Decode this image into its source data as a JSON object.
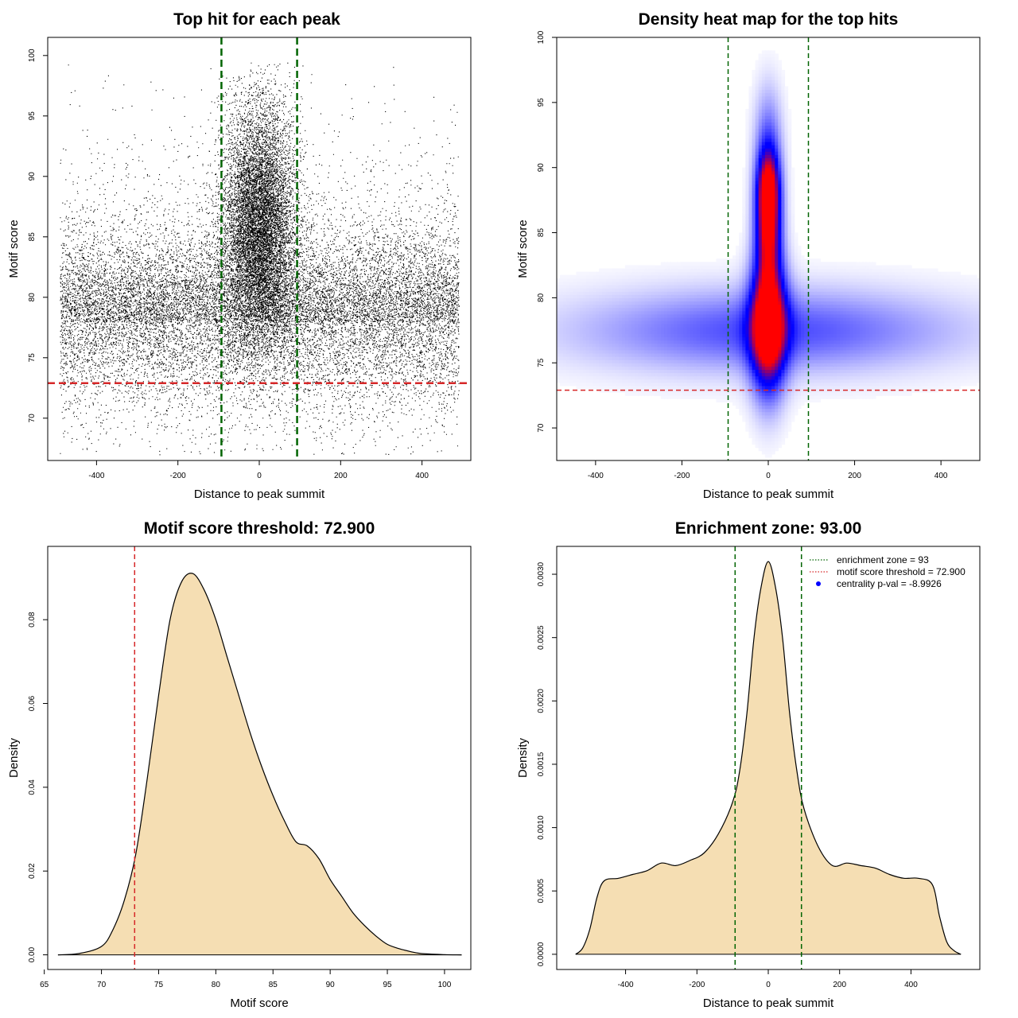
{
  "colors": {
    "scatter_points": "#000000",
    "threshold_line": "#d62728",
    "enrichment_line": "#006400",
    "fill": "#f5deb3",
    "heat_low": "#0000ff",
    "heat_high": "#ff0000"
  },
  "chart_data": [
    {
      "type": "scatter",
      "title": "Top hit for each peak",
      "xlabel": "Distance to peak summit",
      "ylabel": "Motif score",
      "xlim": [
        -520,
        520
      ],
      "ylim": [
        66.5,
        101.5
      ],
      "xticks": [
        -400,
        -200,
        0,
        200,
        400
      ],
      "xtick_labels": [
        "-400",
        "-200",
        "0",
        "200",
        "400"
      ],
      "yticks": [
        70,
        75,
        80,
        85,
        90,
        95,
        100
      ],
      "ytick_labels": [
        "70",
        "75",
        "80",
        "85",
        "90",
        "95",
        "100"
      ],
      "vlines": [
        -93,
        93
      ],
      "hlines": [
        72.9
      ],
      "background_x_range": [
        -490,
        490
      ],
      "background_y_center": 78,
      "background_y_spread": 3.5,
      "central_y_center": 86,
      "central_y_spread": 5,
      "central_x_spread": 45,
      "n_points": 26000,
      "grid": false
    },
    {
      "type": "heatmap",
      "title": "Density heat map for the top hits",
      "xlabel": "Distance to peak summit",
      "ylabel": "Motif score",
      "xlim": [
        -490,
        490
      ],
      "ylim": [
        67.5,
        100
      ],
      "xticks": [
        -400,
        -200,
        0,
        200,
        400
      ],
      "xtick_labels": [
        "-400",
        "-200",
        "0",
        "200",
        "400"
      ],
      "yticks": [
        70,
        75,
        80,
        85,
        90,
        95,
        100
      ],
      "ytick_labels": [
        "70",
        "75",
        "80",
        "85",
        "90",
        "95",
        "100"
      ],
      "vlines": [
        -93,
        93
      ],
      "hlines": [
        72.9
      ],
      "density_peaks": [
        {
          "x": 0,
          "y": 78,
          "sx": 28,
          "sy": 3.5,
          "w": 1.0
        },
        {
          "x": 0,
          "y": 85.5,
          "sx": 20,
          "sy": 3.0,
          "w": 0.75
        },
        {
          "x": 0,
          "y": 88.5,
          "sx": 18,
          "sy": 2.0,
          "w": 0.55
        },
        {
          "x": 0,
          "y": 92,
          "sx": 22,
          "sy": 3.0,
          "w": 0.25
        },
        {
          "x": 0,
          "y": 77.5,
          "sx": 300,
          "sy": 2.2,
          "w": 0.32
        }
      ],
      "grid": false
    },
    {
      "type": "area",
      "title": "Motif score threshold: 72.900",
      "xlabel": "Motif score",
      "ylabel": "Density",
      "xlim": [
        65.3,
        102.3
      ],
      "ylim": [
        -0.0035,
        0.0975
      ],
      "xticks": [
        65,
        70,
        75,
        80,
        85,
        90,
        95,
        100
      ],
      "xtick_labels": [
        "65",
        "70",
        "75",
        "80",
        "85",
        "90",
        "95",
        "100"
      ],
      "yticks": [
        0,
        0.02,
        0.04,
        0.06,
        0.08
      ],
      "ytick_labels": [
        "0.00",
        "0.02",
        "0.04",
        "0.06",
        "0.08"
      ],
      "vlines": [
        72.9
      ],
      "x": [
        66.2,
        68,
        70,
        71,
        72,
        73,
        74,
        75,
        76,
        77,
        78,
        79,
        80,
        81,
        82,
        83,
        84,
        85,
        86,
        87,
        88,
        89,
        90,
        91,
        92,
        93,
        94,
        95,
        96,
        97,
        98,
        100,
        101.5
      ],
      "y": [
        0,
        0.0003,
        0.002,
        0.006,
        0.013,
        0.024,
        0.042,
        0.062,
        0.08,
        0.089,
        0.091,
        0.087,
        0.08,
        0.071,
        0.062,
        0.053,
        0.045,
        0.038,
        0.032,
        0.027,
        0.026,
        0.023,
        0.018,
        0.014,
        0.01,
        0.007,
        0.0045,
        0.0025,
        0.0015,
        0.0008,
        0.0003,
        5e-05,
        0
      ],
      "grid": false
    },
    {
      "type": "area",
      "title": "Enrichment zone: 93.00",
      "xlabel": "Distance to peak summit",
      "ylabel": "Density",
      "xlim": [
        -593,
        593
      ],
      "ylim": [
        -0.00012,
        0.00322
      ],
      "xticks": [
        -400,
        -200,
        0,
        200,
        400
      ],
      "xtick_labels": [
        "-400",
        "-200",
        "0",
        "200",
        "400"
      ],
      "yticks": [
        0,
        0.0005,
        0.001,
        0.0015,
        0.002,
        0.0025,
        0.003
      ],
      "ytick_labels": [
        "0.0000",
        "0.0005",
        "0.0010",
        "0.0015",
        "0.0020",
        "0.0025",
        "0.0030"
      ],
      "vlines": [
        -93,
        93
      ],
      "x": [
        -540,
        -520,
        -500,
        -480,
        -460,
        -420,
        -380,
        -340,
        -300,
        -260,
        -220,
        -180,
        -140,
        -100,
        -80,
        -60,
        -40,
        -20,
        0,
        20,
        40,
        60,
        80,
        100,
        140,
        180,
        220,
        260,
        300,
        340,
        380,
        420,
        460,
        480,
        500,
        520,
        540
      ],
      "y": [
        0,
        5e-05,
        0.0002,
        0.00045,
        0.00058,
        0.0006,
        0.00063,
        0.00066,
        0.00072,
        0.0007,
        0.00074,
        0.0008,
        0.00095,
        0.0012,
        0.00145,
        0.0019,
        0.0025,
        0.0029,
        0.0031,
        0.0029,
        0.0025,
        0.0019,
        0.00145,
        0.00115,
        0.00085,
        0.0007,
        0.00072,
        0.0007,
        0.00068,
        0.00063,
        0.0006,
        0.0006,
        0.00055,
        0.0003,
        0.0001,
        3e-05,
        0
      ],
      "legend": {
        "placement": "top-right",
        "entries": [
          {
            "label": "enrichment zone = 93",
            "color": "#006400",
            "style": "dotted-line"
          },
          {
            "label": "motif score threshold = 72.900",
            "color": "#d62728",
            "style": "dotted-line"
          },
          {
            "label": "centrality p-val = -8.9926",
            "color": "#0000ff",
            "style": "point"
          }
        ]
      },
      "grid": false
    }
  ]
}
